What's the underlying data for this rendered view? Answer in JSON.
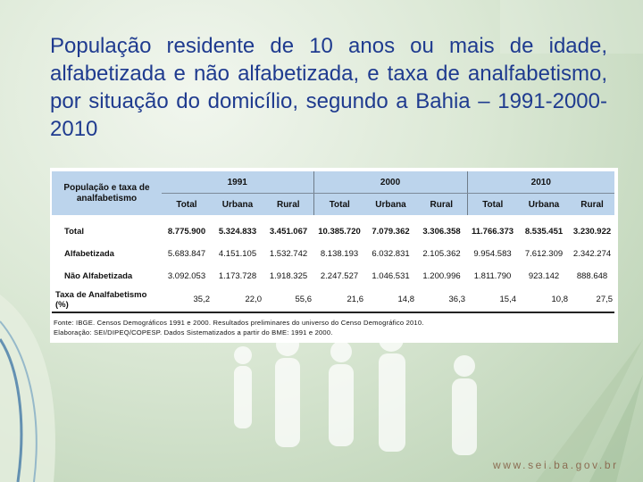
{
  "title": "População residente de 10 anos ou mais de idade, alfabetizada e não alfabetizada, e taxa de analfabetismo, por situação do domicílio, segundo a Bahia – 1991-2000-2010",
  "table": {
    "header_label": "População e taxa de analfabetismo",
    "years": [
      "1991",
      "2000",
      "2010"
    ],
    "subheaders": [
      "Total",
      "Urbana",
      "Rural"
    ],
    "rows": [
      {
        "label": "Total",
        "values": [
          "8.775.900",
          "5.324.833",
          "3.451.067",
          "10.385.720",
          "7.079.362",
          "3.306.358",
          "11.766.373",
          "8.535.451",
          "3.230.922"
        ]
      },
      {
        "label": "Alfabetizada",
        "values": [
          "5.683.847",
          "4.151.105",
          "1.532.742",
          "8.138.193",
          "6.032.831",
          "2.105.362",
          "9.954.583",
          "7.612.309",
          "2.342.274"
        ]
      },
      {
        "label": "Não Alfabetizada",
        "values": [
          "3.092.053",
          "1.173.728",
          "1.918.325",
          "2.247.527",
          "1.046.531",
          "1.200.996",
          "1.811.790",
          "923.142",
          "888.648"
        ]
      },
      {
        "label": "Taxa de Analfabetismo (%)",
        "values": [
          "35,2",
          "22,0",
          "55,6",
          "21,6",
          "14,8",
          "36,3",
          "15,4",
          "10,8",
          "27,5"
        ]
      }
    ]
  },
  "notes": {
    "source": "Fonte: IBGE. Censos Demográficos 1991 e 2000. Resultados preliminares do universo do Censo Demográfico 2010.",
    "elaboration": "Elaboração: SEI/DIPEQ/COPESP. Dados Sistematizados a partir do BME: 1991 e 2000."
  },
  "footer": {
    "website": "www.sei.ba.gov.br"
  },
  "colors": {
    "title": "#1f3b8f",
    "header_fill": "#bcd4ec",
    "background": "#cfe0c8"
  }
}
